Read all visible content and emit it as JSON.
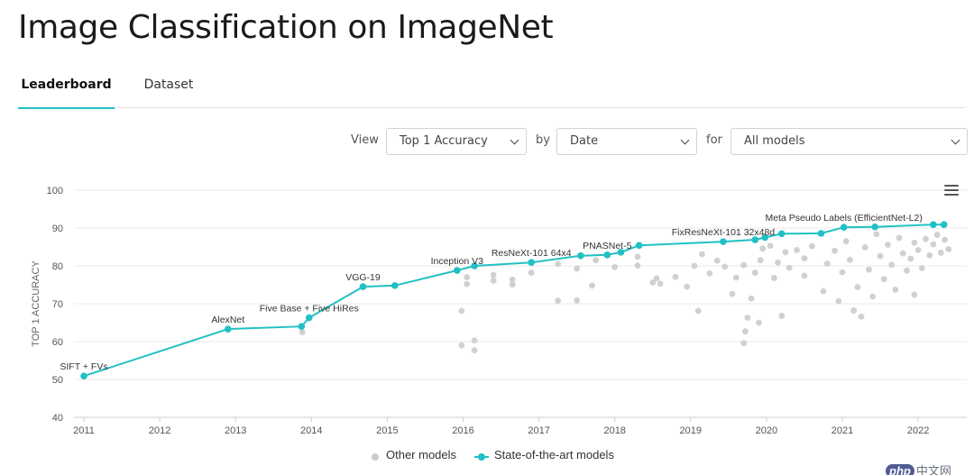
{
  "page": {
    "title": "Image Classification on ImageNet"
  },
  "tabs": [
    {
      "label": "Leaderboard",
      "active": true
    },
    {
      "label": "Dataset",
      "active": false
    }
  ],
  "controls": {
    "view_label": "View",
    "view_value": "Top 1 Accuracy",
    "by_label": "by",
    "by_value": "Date",
    "for_label": "for",
    "for_value": "All models"
  },
  "colors": {
    "accent": "#21c0c4",
    "other_models": "#d0d0d0"
  },
  "icons": {
    "chart_menu": "hamburger-menu-icon"
  },
  "chart_data": {
    "type": "scatter",
    "ylabel": "TOP 1 ACCURACY",
    "xlabel": "",
    "ylim": [
      40,
      100
    ],
    "xlim": [
      2010.9,
      2022.45
    ],
    "x_ticks": [
      "2011",
      "2012",
      "2013",
      "2014",
      "2015",
      "2016",
      "2017",
      "2018",
      "2019",
      "2020",
      "2021",
      "2022"
    ],
    "y_ticks": [
      "40",
      "50",
      "60",
      "70",
      "80",
      "90",
      "100"
    ],
    "grid": "horizontal",
    "legend": "bottom-center",
    "series": [
      {
        "name": "State-of-the-art models",
        "style": "line+markers",
        "points": [
          {
            "x": 2011.0,
            "y": 50.9,
            "label": "SIFT + FVs"
          },
          {
            "x": 2012.9,
            "y": 63.3,
            "label": "AlexNet"
          },
          {
            "x": 2013.87,
            "y": 64.0
          },
          {
            "x": 2013.97,
            "y": 66.3,
            "label": "Five Base + Five HiRes"
          },
          {
            "x": 2014.68,
            "y": 74.5,
            "label": "VGG-19"
          },
          {
            "x": 2015.1,
            "y": 74.8
          },
          {
            "x": 2015.92,
            "y": 78.8,
            "label": "Inception V3"
          },
          {
            "x": 2016.15,
            "y": 80.0
          },
          {
            "x": 2016.9,
            "y": 80.9,
            "label": "ResNeXt-101 64x4"
          },
          {
            "x": 2017.55,
            "y": 82.7
          },
          {
            "x": 2017.9,
            "y": 82.9,
            "label": "PNASNet-5"
          },
          {
            "x": 2018.08,
            "y": 83.6
          },
          {
            "x": 2018.32,
            "y": 85.4
          },
          {
            "x": 2019.43,
            "y": 86.4,
            "label": "FixResNeXt-101 32x48d"
          },
          {
            "x": 2019.85,
            "y": 86.9
          },
          {
            "x": 2019.98,
            "y": 87.5
          },
          {
            "x": 2020.2,
            "y": 88.5
          },
          {
            "x": 2020.72,
            "y": 88.6
          },
          {
            "x": 2021.02,
            "y": 90.2,
            "label": "Meta Pseudo Labels (EfficientNet-L2)"
          },
          {
            "x": 2021.43,
            "y": 90.3
          },
          {
            "x": 2022.2,
            "y": 90.9
          },
          {
            "x": 2022.34,
            "y": 90.9
          }
        ]
      },
      {
        "name": "Other models",
        "style": "markers",
        "points": [
          {
            "x": 2013.88,
            "y": 62.5
          },
          {
            "x": 2015.98,
            "y": 68.1
          },
          {
            "x": 2015.98,
            "y": 59.0
          },
          {
            "x": 2016.05,
            "y": 75.2
          },
          {
            "x": 2016.05,
            "y": 77.0
          },
          {
            "x": 2016.15,
            "y": 60.3
          },
          {
            "x": 2016.15,
            "y": 57.7
          },
          {
            "x": 2016.4,
            "y": 76.1
          },
          {
            "x": 2016.4,
            "y": 77.6
          },
          {
            "x": 2016.65,
            "y": 75.1
          },
          {
            "x": 2016.65,
            "y": 76.4
          },
          {
            "x": 2016.9,
            "y": 78.2
          },
          {
            "x": 2017.25,
            "y": 70.8
          },
          {
            "x": 2017.25,
            "y": 80.5
          },
          {
            "x": 2017.5,
            "y": 70.9
          },
          {
            "x": 2017.5,
            "y": 79.3
          },
          {
            "x": 2017.7,
            "y": 74.8
          },
          {
            "x": 2017.75,
            "y": 81.5
          },
          {
            "x": 2018.0,
            "y": 79.7
          },
          {
            "x": 2018.3,
            "y": 80.1
          },
          {
            "x": 2018.3,
            "y": 82.4
          },
          {
            "x": 2018.5,
            "y": 75.6
          },
          {
            "x": 2018.55,
            "y": 76.7
          },
          {
            "x": 2018.6,
            "y": 75.3
          },
          {
            "x": 2018.8,
            "y": 77.1
          },
          {
            "x": 2018.95,
            "y": 74.5
          },
          {
            "x": 2019.05,
            "y": 80.0
          },
          {
            "x": 2019.1,
            "y": 68.1
          },
          {
            "x": 2019.15,
            "y": 83.1
          },
          {
            "x": 2019.25,
            "y": 78.0
          },
          {
            "x": 2019.35,
            "y": 81.4
          },
          {
            "x": 2019.45,
            "y": 79.8
          },
          {
            "x": 2019.55,
            "y": 72.6
          },
          {
            "x": 2019.6,
            "y": 76.9
          },
          {
            "x": 2019.7,
            "y": 80.2
          },
          {
            "x": 2019.7,
            "y": 59.6
          },
          {
            "x": 2019.72,
            "y": 62.7
          },
          {
            "x": 2019.75,
            "y": 66.3
          },
          {
            "x": 2019.8,
            "y": 71.4
          },
          {
            "x": 2019.85,
            "y": 78.2
          },
          {
            "x": 2019.9,
            "y": 65.0
          },
          {
            "x": 2019.92,
            "y": 81.5
          },
          {
            "x": 2019.95,
            "y": 84.6
          },
          {
            "x": 2020.05,
            "y": 85.3
          },
          {
            "x": 2020.1,
            "y": 76.8
          },
          {
            "x": 2020.15,
            "y": 80.9
          },
          {
            "x": 2020.2,
            "y": 66.8
          },
          {
            "x": 2020.25,
            "y": 83.6
          },
          {
            "x": 2020.3,
            "y": 79.5
          },
          {
            "x": 2020.4,
            "y": 84.2
          },
          {
            "x": 2020.5,
            "y": 77.4
          },
          {
            "x": 2020.5,
            "y": 82.0
          },
          {
            "x": 2020.6,
            "y": 85.2
          },
          {
            "x": 2020.75,
            "y": 73.3
          },
          {
            "x": 2020.8,
            "y": 80.6
          },
          {
            "x": 2020.9,
            "y": 84.0
          },
          {
            "x": 2020.95,
            "y": 70.7
          },
          {
            "x": 2021.0,
            "y": 78.3
          },
          {
            "x": 2021.05,
            "y": 86.5
          },
          {
            "x": 2021.1,
            "y": 81.6
          },
          {
            "x": 2021.15,
            "y": 68.2
          },
          {
            "x": 2021.2,
            "y": 74.4
          },
          {
            "x": 2021.25,
            "y": 66.6
          },
          {
            "x": 2021.3,
            "y": 84.9
          },
          {
            "x": 2021.35,
            "y": 79.0
          },
          {
            "x": 2021.4,
            "y": 71.9
          },
          {
            "x": 2021.45,
            "y": 88.4
          },
          {
            "x": 2021.5,
            "y": 82.6
          },
          {
            "x": 2021.55,
            "y": 76.5
          },
          {
            "x": 2021.6,
            "y": 85.6
          },
          {
            "x": 2021.65,
            "y": 80.3
          },
          {
            "x": 2021.7,
            "y": 73.7
          },
          {
            "x": 2021.75,
            "y": 87.4
          },
          {
            "x": 2021.8,
            "y": 83.3
          },
          {
            "x": 2021.85,
            "y": 78.8
          },
          {
            "x": 2021.9,
            "y": 81.9
          },
          {
            "x": 2021.95,
            "y": 86.1
          },
          {
            "x": 2021.95,
            "y": 72.4
          },
          {
            "x": 2022.0,
            "y": 84.2
          },
          {
            "x": 2022.05,
            "y": 79.4
          },
          {
            "x": 2022.1,
            "y": 87.1
          },
          {
            "x": 2022.15,
            "y": 82.8
          },
          {
            "x": 2022.2,
            "y": 85.7
          },
          {
            "x": 2022.25,
            "y": 88.2
          },
          {
            "x": 2022.3,
            "y": 83.5
          },
          {
            "x": 2022.35,
            "y": 86.9
          },
          {
            "x": 2022.4,
            "y": 84.4
          }
        ]
      }
    ]
  },
  "watermark": {
    "badge": "php",
    "text": "中文网"
  }
}
